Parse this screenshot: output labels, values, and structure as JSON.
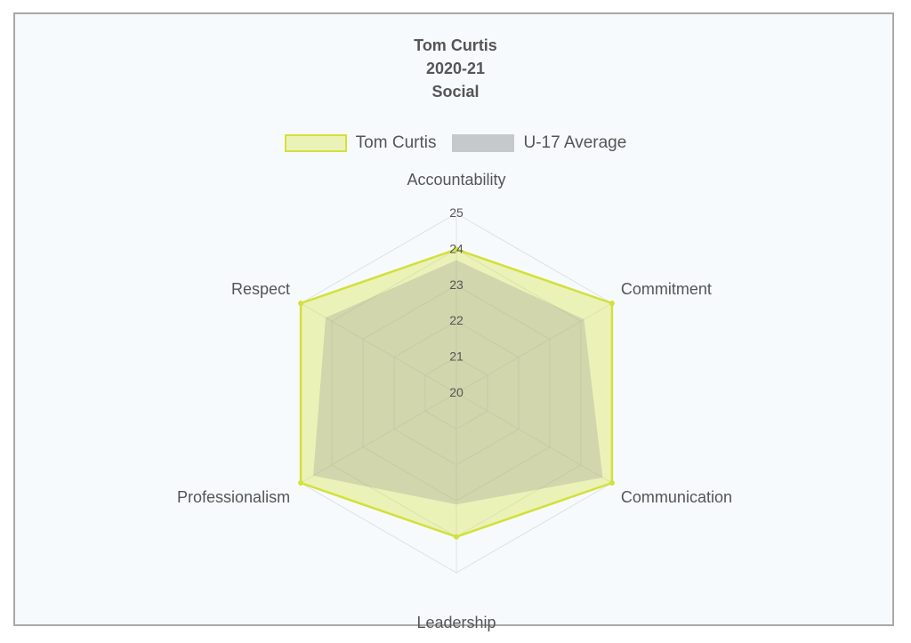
{
  "title_lines": [
    "Tom Curtis",
    "2020-21",
    "Social"
  ],
  "colors": {
    "player_fill": "rgba(218,229,80,0.40)",
    "player_stroke": "#d4e03a",
    "average_fill": "rgba(150,150,150,0.30)",
    "average_swatch": "#c6c9cc",
    "grid": "#dde1e6",
    "text": "#555555"
  },
  "chart_data": {
    "type": "radar",
    "title": "Tom Curtis 2020-21 Social",
    "axes": [
      "Accountability",
      "Commitment",
      "Communication",
      "Leadership",
      "Professionalism",
      "Respect"
    ],
    "scale": {
      "min": 20,
      "max": 25,
      "ticks": [
        20,
        21,
        22,
        23,
        24,
        25
      ]
    },
    "series": [
      {
        "name": "Tom Curtis",
        "values": [
          24,
          25,
          25,
          24,
          25,
          25
        ]
      },
      {
        "name": "U-17 Average",
        "values": [
          23.7,
          24.1,
          24.7,
          23.1,
          24.6,
          24.2
        ]
      }
    ],
    "legend_position": "top",
    "grid": true
  }
}
